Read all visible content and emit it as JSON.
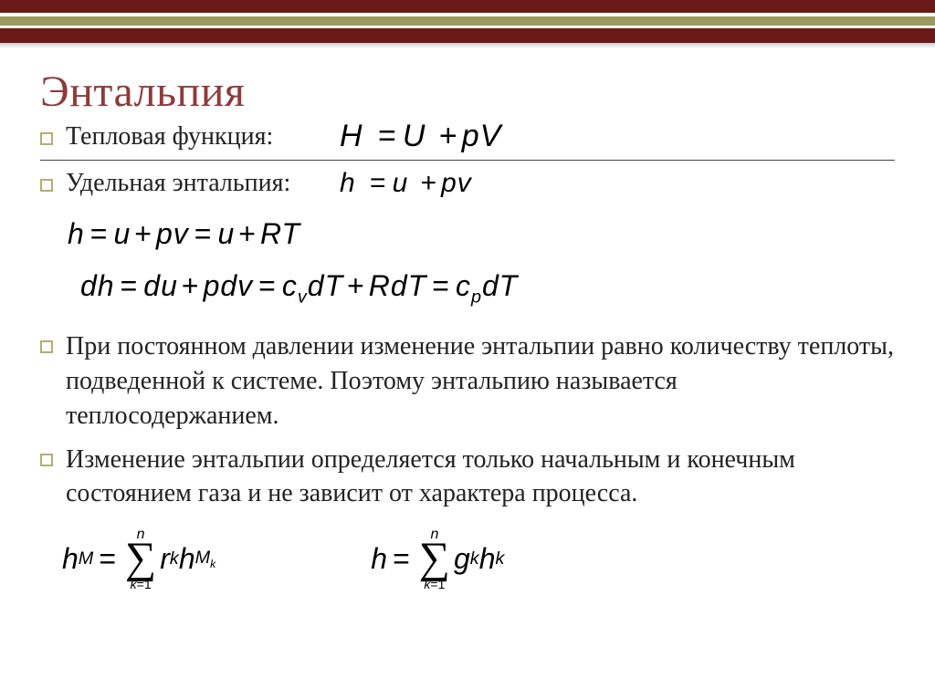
{
  "colors": {
    "title": "#8f3a3a",
    "bar_dark": "#6b1a1a",
    "bar_olive": "#9a9a5e",
    "bullet_border": "#b0b070",
    "text": "#222222",
    "formula": "#000000",
    "background": "#ffffff"
  },
  "typography": {
    "title_fontsize": 48,
    "body_fontsize": 28,
    "formula_fontsize": 32,
    "title_font": "Times New Roman",
    "body_font": "Times New Roman",
    "formula_font": "Arial"
  },
  "title": "Энтальпия",
  "bullets": {
    "b1_label": "Тепловая функция:",
    "b1_formula_H": "H",
    "b1_formula_eq": "=",
    "b1_formula_U": "U",
    "b1_formula_plus": "+",
    "b1_formula_pV": "pV",
    "b2_label": "Удельная энтальпия:",
    "b2_formula_h": "h",
    "b2_formula_u": "u",
    "b2_formula_pv": "pv",
    "para1": "При постоянном давлении изменение энтальпии равно количеству теплоты, подведенной к системе. Поэтому энтальпию называется теплосодержанием.",
    "para2": "Изменение энтальпии определяется только начальным и конечным состоянием газа и не зависит от характера процесса."
  },
  "formulas": {
    "line3_h": "h",
    "line3_u": "u",
    "line3_pv": "pv",
    "line3_RT": "RT",
    "line4_dh": "dh",
    "line4_du": "du",
    "line4_pdv": "pdv",
    "line4_cv": "c",
    "line4_cv_sub": "v",
    "line4_dT": "dT",
    "line4_RdT": "RdT",
    "line4_cp": "c",
    "line4_cp_sub": "p",
    "sum1_lhs": "h",
    "sum1_lhs_sub": "M",
    "sum1_top": "n",
    "sum1_bot_k": "k",
    "sum1_bot_eq": "=",
    "sum1_bot_1": "1",
    "sum1_r": "r",
    "sum1_r_sub": "k",
    "sum1_h": "h",
    "sum1_h_sub1": "M",
    "sum1_h_sub2": "k",
    "sum2_lhs": "h",
    "sum2_g": "g",
    "sum2_g_sub": "k",
    "sum2_h": "h",
    "sum2_h_sub": "k"
  }
}
